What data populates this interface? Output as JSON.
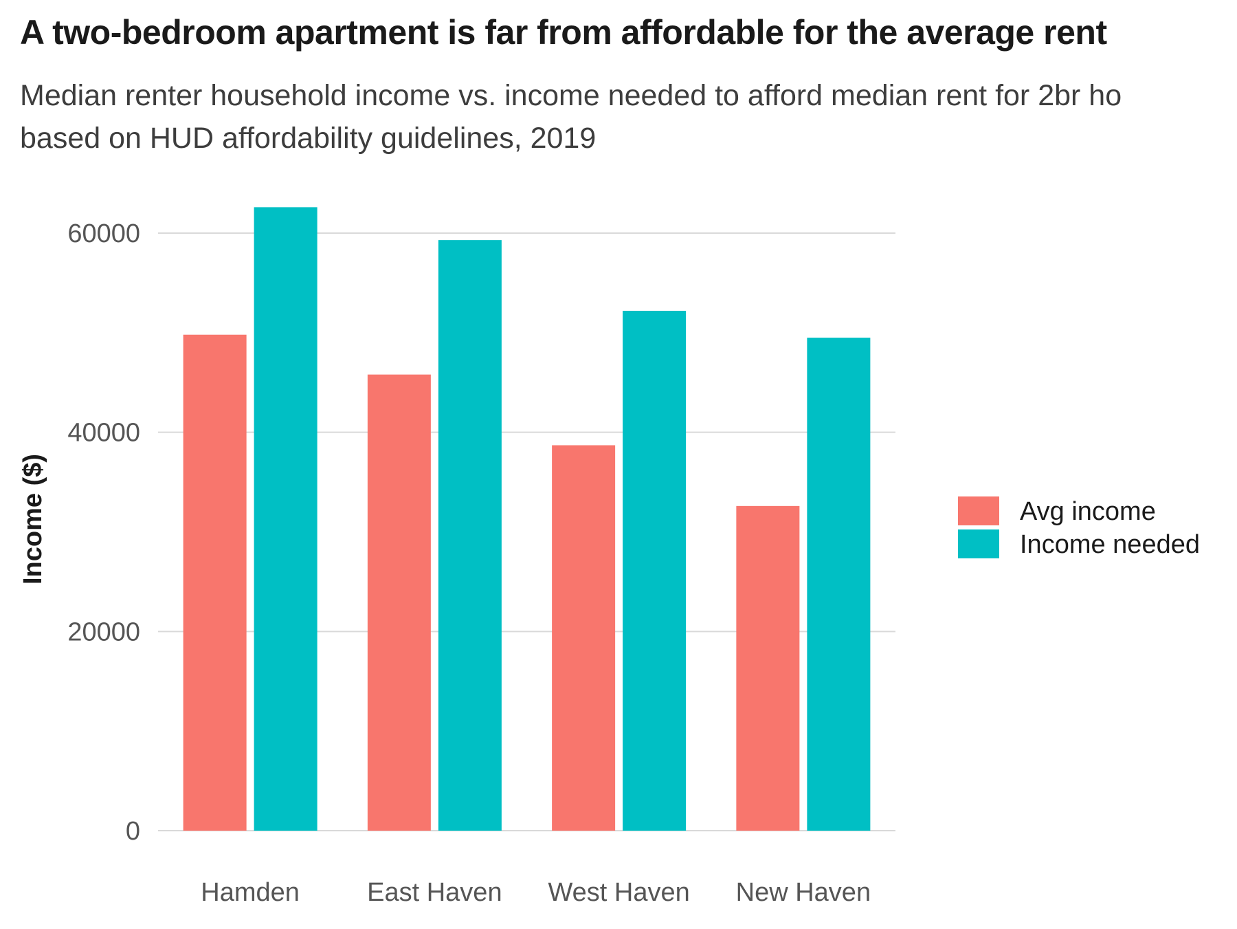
{
  "chart_data": {
    "type": "bar",
    "title": "A two-bedroom apartment is far from affordable for the average rent",
    "subtitle_lines": [
      "Median renter household income vs. income needed to afford median rent for 2br ho",
      "based on HUD affordability guidelines, 2019"
    ],
    "xlabel": "",
    "ylabel": "Income ($)",
    "categories": [
      "Hamden",
      "East Haven",
      "West Haven",
      "New Haven"
    ],
    "series": [
      {
        "name": "Avg income",
        "color": "#F8766D",
        "values": [
          49800,
          45800,
          38700,
          32600
        ]
      },
      {
        "name": "Income needed",
        "color": "#00BFC4",
        "values": [
          62600,
          59300,
          52200,
          49500
        ]
      }
    ],
    "ylim": [
      0,
      64000
    ],
    "yticks": [
      0,
      20000,
      40000,
      60000
    ],
    "ytick_labels": [
      "0",
      "20000",
      "40000",
      "60000"
    ],
    "grid": true,
    "legend_position": "right"
  }
}
